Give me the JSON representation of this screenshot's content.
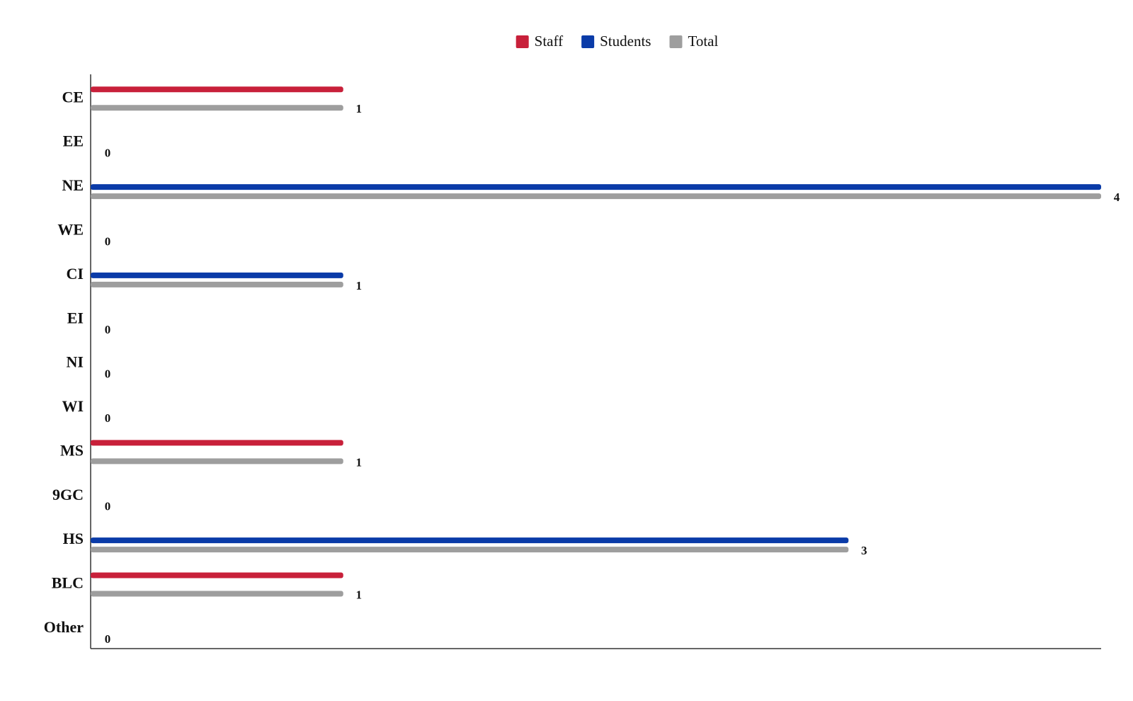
{
  "chart_data": {
    "type": "hbar",
    "categories": [
      "CE",
      "EE",
      "NE",
      "WE",
      "CI",
      "EI",
      "NI",
      "WI",
      "MS",
      "9GC",
      "HS",
      "BLC",
      "Other"
    ],
    "series": [
      {
        "name": "Staff",
        "color": "#c8203a",
        "values": [
          1,
          0,
          0,
          0,
          0,
          0,
          0,
          0,
          1,
          0,
          0,
          1,
          0
        ]
      },
      {
        "name": "Students",
        "color": "#0a3ba8",
        "values": [
          0,
          0,
          4,
          0,
          1,
          0,
          0,
          0,
          0,
          0,
          3,
          0,
          0
        ]
      },
      {
        "name": "Total",
        "color": "#9e9e9e",
        "values": [
          1,
          0,
          4,
          0,
          1,
          0,
          0,
          0,
          1,
          0,
          3,
          1,
          0
        ],
        "data_labels": true
      }
    ],
    "xlim": [
      0,
      4
    ],
    "legend": "top"
  }
}
